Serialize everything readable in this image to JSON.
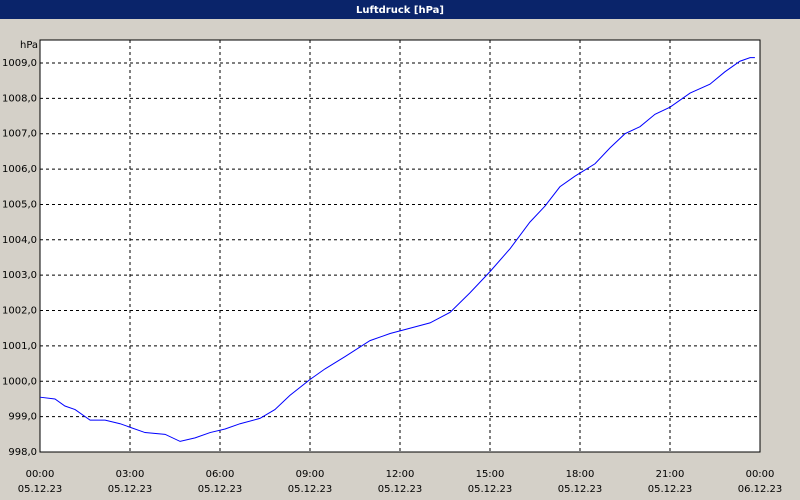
{
  "chart_data": {
    "type": "line",
    "title": "Luftdruck [hPa]",
    "y_label": "hPa",
    "x": [
      0,
      0.5,
      0.83,
      1.17,
      1.67,
      2.17,
      2.67,
      3,
      3.5,
      4.17,
      4.67,
      5.17,
      5.67,
      6.17,
      6.67,
      7.33,
      7.83,
      8.33,
      9,
      9.5,
      10.17,
      11,
      11.67,
      12.33,
      13,
      13.67,
      14.33,
      15,
      15.67,
      16.33,
      16.83,
      17.33,
      17.83,
      18.5,
      19,
      19.5,
      20,
      20.5,
      21,
      21.67,
      22.33,
      22.83,
      23.33,
      23.67,
      23.83
    ],
    "series": [
      {
        "name": "Luftdruck",
        "color": "#0000ff",
        "values": [
          999.55,
          999.5,
          999.3,
          999.2,
          998.9,
          998.9,
          998.8,
          998.7,
          998.55,
          998.5,
          998.3,
          998.4,
          998.55,
          998.65,
          998.8,
          998.95,
          999.2,
          999.6,
          1000.05,
          1000.35,
          1000.7,
          1001.15,
          1001.35,
          1001.5,
          1001.65,
          1001.95,
          1002.5,
          1003.1,
          1003.75,
          1004.5,
          1004.95,
          1005.5,
          1005.8,
          1006.15,
          1006.6,
          1007.0,
          1007.2,
          1007.55,
          1007.75,
          1008.15,
          1008.4,
          1008.75,
          1009.05,
          1009.15,
          1009.15
        ]
      }
    ],
    "xlim": [
      0,
      24
    ],
    "xticks": [
      {
        "value": 0,
        "label": "00:00",
        "date": "05.12.23"
      },
      {
        "value": 3,
        "label": "03:00",
        "date": "05.12.23"
      },
      {
        "value": 6,
        "label": "06:00",
        "date": "05.12.23"
      },
      {
        "value": 9,
        "label": "09:00",
        "date": "05.12.23"
      },
      {
        "value": 12,
        "label": "12:00",
        "date": "05.12.23"
      },
      {
        "value": 15,
        "label": "15:00",
        "date": "05.12.23"
      },
      {
        "value": 18,
        "label": "18:00",
        "date": "05.12.23"
      },
      {
        "value": 21,
        "label": "21:00",
        "date": "05.12.23"
      },
      {
        "value": 24,
        "label": "00:00",
        "date": "06.12.23"
      }
    ],
    "ylim": [
      998,
      1009.65
    ],
    "yticks": [
      {
        "value": 998,
        "label": "998,0"
      },
      {
        "value": 999,
        "label": "999,0"
      },
      {
        "value": 1000,
        "label": "1000,0"
      },
      {
        "value": 1001,
        "label": "1001,0"
      },
      {
        "value": 1002,
        "label": "1002,0"
      },
      {
        "value": 1003,
        "label": "1003,0"
      },
      {
        "value": 1004,
        "label": "1004,0"
      },
      {
        "value": 1005,
        "label": "1005,0"
      },
      {
        "value": 1006,
        "label": "1006,0"
      },
      {
        "value": 1007,
        "label": "1007,0"
      },
      {
        "value": 1008,
        "label": "1008,0"
      },
      {
        "value": 1009,
        "label": "1009,0"
      }
    ],
    "grid": true
  }
}
